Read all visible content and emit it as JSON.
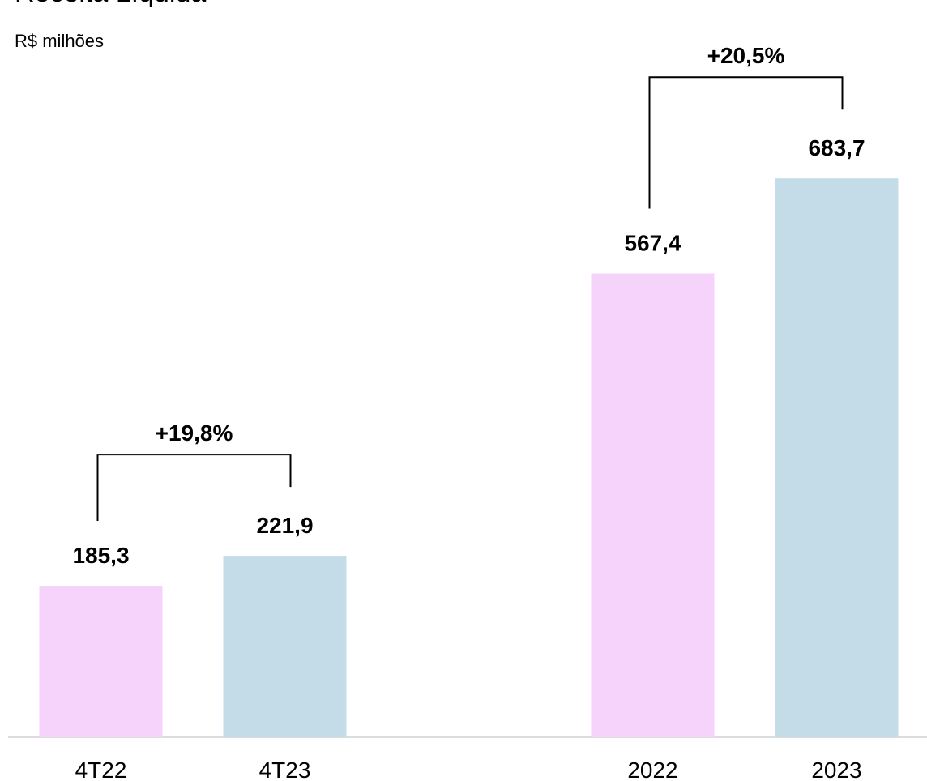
{
  "chart_data": {
    "type": "bar",
    "title": "Receita Líquida",
    "subtitle": "R$ milhões",
    "categories": [
      "4T22",
      "4T23",
      null,
      "2022",
      "2023"
    ],
    "values": [
      185.3,
      221.9,
      null,
      567.4,
      683.7
    ],
    "value_labels": [
      "185,3",
      "221,9",
      null,
      "567,4",
      "683,7"
    ],
    "colors": [
      "#f5d3fb",
      "#c4dbe8",
      null,
      "#f5d3fb",
      "#c4dbe8"
    ],
    "ylim": [
      0,
      900
    ],
    "annotations": [
      {
        "text": "+19,8%",
        "from": 0,
        "to": 1
      },
      {
        "text": "+20,5%",
        "from": 3,
        "to": 4
      }
    ]
  }
}
